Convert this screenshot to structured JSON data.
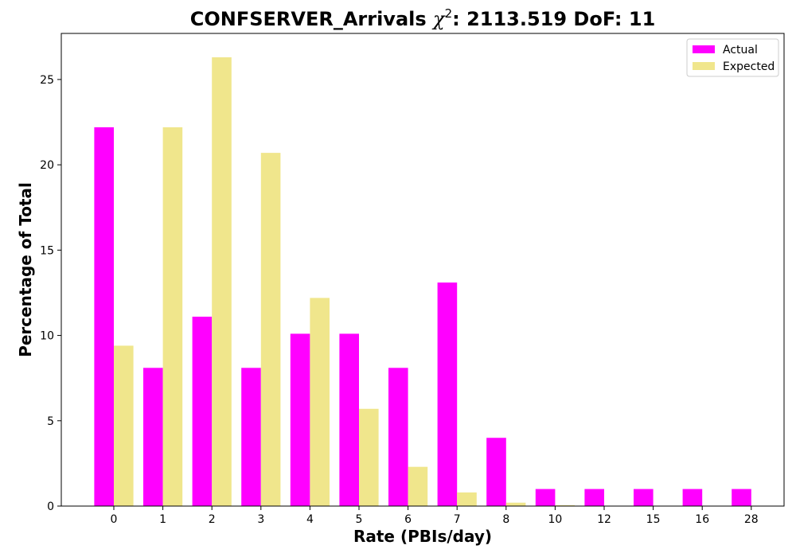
{
  "chart_data": {
    "type": "bar",
    "title_main": "CONFSERVER_Arrivals ",
    "title_chi": "χ",
    "title_chi_exp": "2",
    "title_rest": ": 2113.519 DoF: 11",
    "xlabel": "Rate (PBIs/day)",
    "ylabel": "Percentage of Total",
    "categories": [
      "0",
      "1",
      "2",
      "3",
      "4",
      "5",
      "6",
      "7",
      "8",
      "10",
      "12",
      "15",
      "16",
      "28"
    ],
    "ylim": [
      0,
      27.7
    ],
    "yticks": [
      0,
      5,
      10,
      15,
      20,
      25
    ],
    "legend_position": "top-right",
    "series": [
      {
        "name": "Actual",
        "color": "#ff00ff",
        "values": [
          22.2,
          8.1,
          11.1,
          8.1,
          10.1,
          10.1,
          8.1,
          13.1,
          4.0,
          1.0,
          1.0,
          1.0,
          1.0,
          1.0
        ]
      },
      {
        "name": "Expected",
        "color": "#f0e68c",
        "values": [
          9.4,
          22.2,
          26.3,
          20.7,
          12.2,
          5.7,
          2.3,
          0.8,
          0.2,
          0.05,
          0.01,
          0.0,
          0.0,
          0.0
        ]
      }
    ]
  }
}
